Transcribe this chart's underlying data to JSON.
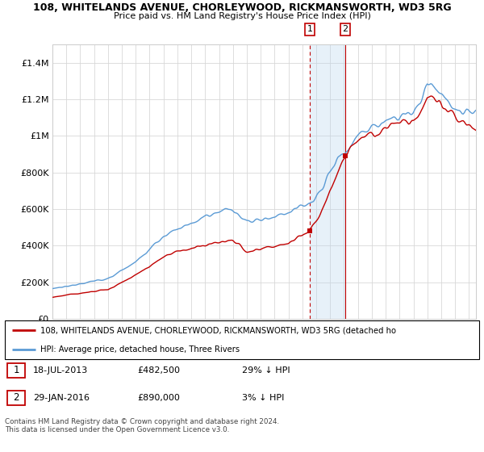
{
  "title1": "108, WHITELANDS AVENUE, CHORLEYWOOD, RICKMANSWORTH, WD3 5RG",
  "title2": "Price paid vs. HM Land Registry's House Price Index (HPI)",
  "legend_line1": "108, WHITELANDS AVENUE, CHORLEYWOOD, RICKMANSWORTH, WD3 5RG (detached ho",
  "legend_line2": "HPI: Average price, detached house, Three Rivers",
  "annotation1_label": "1",
  "annotation1_date": "18-JUL-2013",
  "annotation1_price": "£482,500",
  "annotation1_hpi": "29% ↓ HPI",
  "annotation2_label": "2",
  "annotation2_date": "29-JAN-2016",
  "annotation2_price": "£890,000",
  "annotation2_hpi": "3% ↓ HPI",
  "footer": "Contains HM Land Registry data © Crown copyright and database right 2024.\nThis data is licensed under the Open Government Licence v3.0.",
  "hpi_color": "#5b9bd5",
  "price_color": "#c00000",
  "annotation_box_color": "#c00000",
  "highlight_color": "#bdd7ee",
  "ylim": [
    0,
    1500000
  ],
  "yticks": [
    0,
    200000,
    400000,
    600000,
    800000,
    1000000,
    1200000,
    1400000
  ],
  "ytick_labels": [
    "£0",
    "£200K",
    "£400K",
    "£600K",
    "£800K",
    "£1M",
    "£1.2M",
    "£1.4M"
  ],
  "sale1_year": 2013.54,
  "sale1_price": 482500,
  "sale2_year": 2016.08,
  "sale2_price": 890000,
  "xmin": 1995,
  "xmax": 2025.5
}
